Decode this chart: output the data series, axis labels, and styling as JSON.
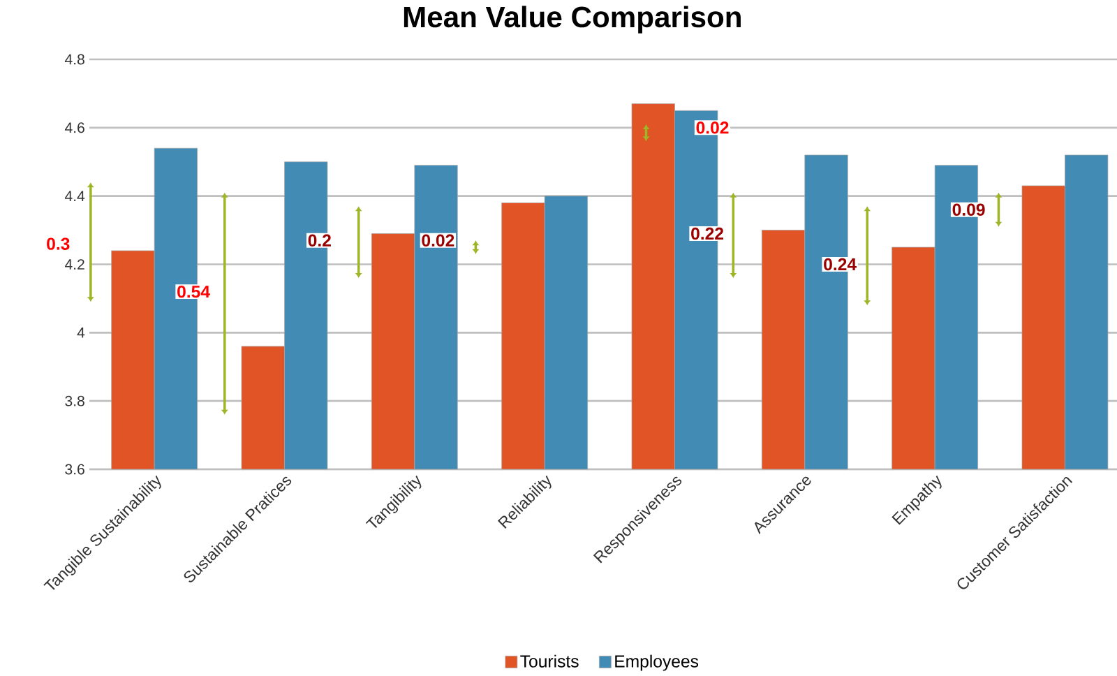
{
  "chart_data": {
    "type": "bar",
    "title": "Mean Value Comparison",
    "categories": [
      "Tangible Sustainability",
      "Sustainable Pratices",
      "Tangibility",
      "Reliability",
      "Responsiveness",
      "Assurance",
      "Empathy",
      "Customer Satisfaction"
    ],
    "series": [
      {
        "name": "Tourists",
        "color": "#e05426",
        "values": [
          4.24,
          3.96,
          4.29,
          4.38,
          4.67,
          4.3,
          4.25,
          4.43
        ]
      },
      {
        "name": "Employees",
        "color": "#428bb5",
        "values": [
          4.54,
          4.5,
          4.49,
          4.4,
          4.65,
          4.52,
          4.49,
          4.52
        ]
      }
    ],
    "ylim": [
      3.6,
      4.8
    ],
    "yticks": [
      3.6,
      3.8,
      4,
      4.2,
      4.4,
      4.6,
      4.8
    ],
    "grid": "y",
    "legend": "bottom",
    "annotations": [
      "0.3",
      "0.54",
      "0.2",
      "0.02",
      "0.02",
      "0.22",
      "0.24",
      "0.09"
    ]
  }
}
